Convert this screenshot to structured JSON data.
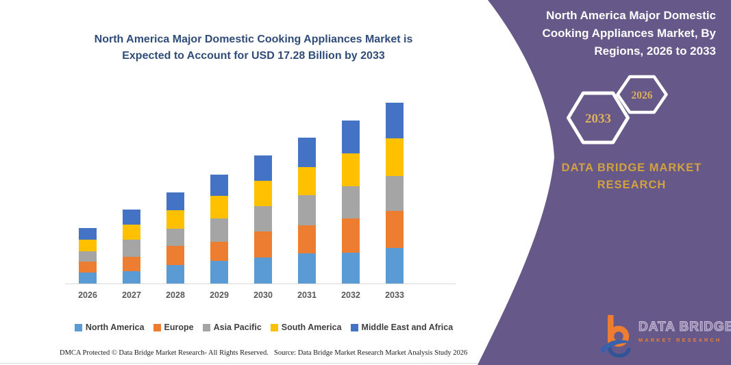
{
  "chart": {
    "title_lines": [
      "North America Major Domestic Cooking Appliances Market is",
      "Expected to Account for USD 17.28 Billion by 2033"
    ],
    "title_color": "#2F4B78"
  },
  "chart_data": {
    "type": "bar",
    "stacked": true,
    "title": "North America Major Domestic Cooking Appliances Market is Expected to Account for USD 17.28 Billion by 2033",
    "unit": "USD Billion",
    "categories": [
      "2026",
      "2027",
      "2028",
      "2029",
      "2030",
      "2031",
      "2032",
      "2033"
    ],
    "series": [
      {
        "name": "North America",
        "color": "#5B9BD5",
        "values": [
          1.04,
          1.19,
          1.8,
          2.13,
          2.46,
          2.86,
          2.97,
          3.41
        ]
      },
      {
        "name": "Europe",
        "color": "#ED7D31",
        "values": [
          1.03,
          1.34,
          1.8,
          1.87,
          2.49,
          2.73,
          3.24,
          3.52
        ]
      },
      {
        "name": "Asia Pacific",
        "color": "#A5A5A5",
        "values": [
          1.01,
          1.63,
          1.67,
          2.2,
          2.46,
          2.86,
          3.08,
          3.35
        ]
      },
      {
        "name": "South America",
        "color": "#FFC000",
        "values": [
          1.14,
          1.5,
          1.76,
          2.16,
          2.42,
          2.71,
          3.12,
          3.59
        ]
      },
      {
        "name": "Middle East and Africa",
        "color": "#4472C4",
        "values": [
          1.1,
          1.39,
          1.7,
          2.07,
          2.42,
          2.79,
          3.19,
          3.41
        ]
      }
    ],
    "totals": [
      5.32,
      7.05,
      8.73,
      10.43,
      12.25,
      13.95,
      15.6,
      17.28
    ],
    "ylim": [
      0,
      17.28
    ],
    "grid": false,
    "legend_position": "bottom"
  },
  "side_panel": {
    "title_lines": [
      "North America Major Domestic",
      "Cooking Appliances Market, By",
      "Regions, 2026 to 2033"
    ],
    "badges": [
      {
        "label": "2033"
      },
      {
        "label": "2026"
      }
    ],
    "brand_lines": [
      "DATA BRIDGE MARKET",
      "RESEARCH"
    ],
    "logo": {
      "title": "DATA BRIDGE",
      "subtitle": "MARKET RESEARCH"
    },
    "colors": {
      "background": "#665889",
      "gold": "#D2A23E",
      "badge_text": "#DDB05E"
    }
  },
  "footer": {
    "left": "DMCA Protected © Data Bridge Market Research-  All Rights Reserved.",
    "right": "Source: Data Bridge Market Research  Market Analysis Study 2026"
  }
}
